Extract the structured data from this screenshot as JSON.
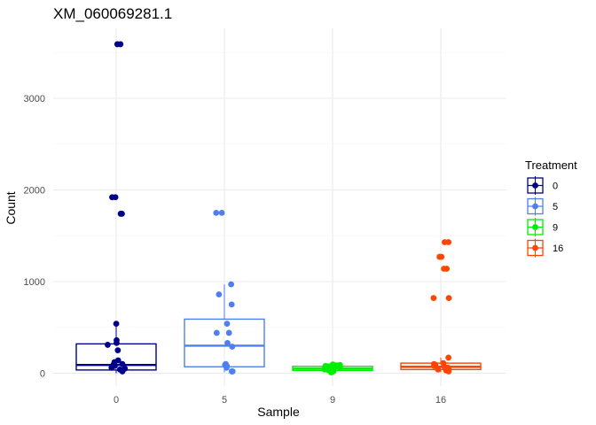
{
  "chart_data": {
    "type": "boxplot",
    "title": "XM_060069281.1",
    "xlabel": "Sample",
    "ylabel": "Count",
    "categories": [
      "0",
      "5",
      "9",
      "16"
    ],
    "yticks": [
      0,
      1000,
      2000,
      3000
    ],
    "ylim": [
      -100,
      3700
    ],
    "grid": true,
    "legend": {
      "title": "Treatment",
      "placement": "right",
      "entries": [
        "0",
        "5",
        "9",
        "16"
      ]
    },
    "series": [
      {
        "name": "0",
        "color": "#00008B",
        "box": {
          "whisker_low": 0,
          "q1": 35,
          "median": 90,
          "q3": 320,
          "whisker_high": 540
        },
        "points": [
          3590,
          3590,
          1920,
          1920,
          1740,
          1740,
          540,
          360,
          330,
          310,
          250,
          140,
          120,
          100,
          90,
          80,
          60,
          50,
          40,
          30,
          20
        ]
      },
      {
        "name": "5",
        "color": "#4F7FEF",
        "box": {
          "whisker_low": 10,
          "q1": 70,
          "median": 300,
          "q3": 590,
          "whisker_high": 970
        },
        "points": [
          1750,
          1750,
          970,
          860,
          750,
          540,
          440,
          440,
          330,
          290,
          100,
          90,
          80,
          60,
          20,
          20
        ]
      },
      {
        "name": "9",
        "color": "#00EE00",
        "box": {
          "whisker_low": 10,
          "q1": 30,
          "median": 50,
          "q3": 75,
          "whisker_high": 95
        },
        "points": [
          95,
          90,
          85,
          80,
          75,
          70,
          65,
          60,
          55,
          50,
          45,
          40,
          35,
          30,
          20,
          10
        ]
      },
      {
        "name": "16",
        "color": "#FF4500",
        "box": {
          "whisker_low": 10,
          "q1": 40,
          "median": 70,
          "q3": 110,
          "whisker_high": 170
        },
        "points": [
          1430,
          1430,
          1270,
          1270,
          1140,
          1140,
          820,
          820,
          170,
          110,
          100,
          90,
          80,
          70,
          60,
          50,
          40,
          30,
          20
        ]
      }
    ]
  }
}
